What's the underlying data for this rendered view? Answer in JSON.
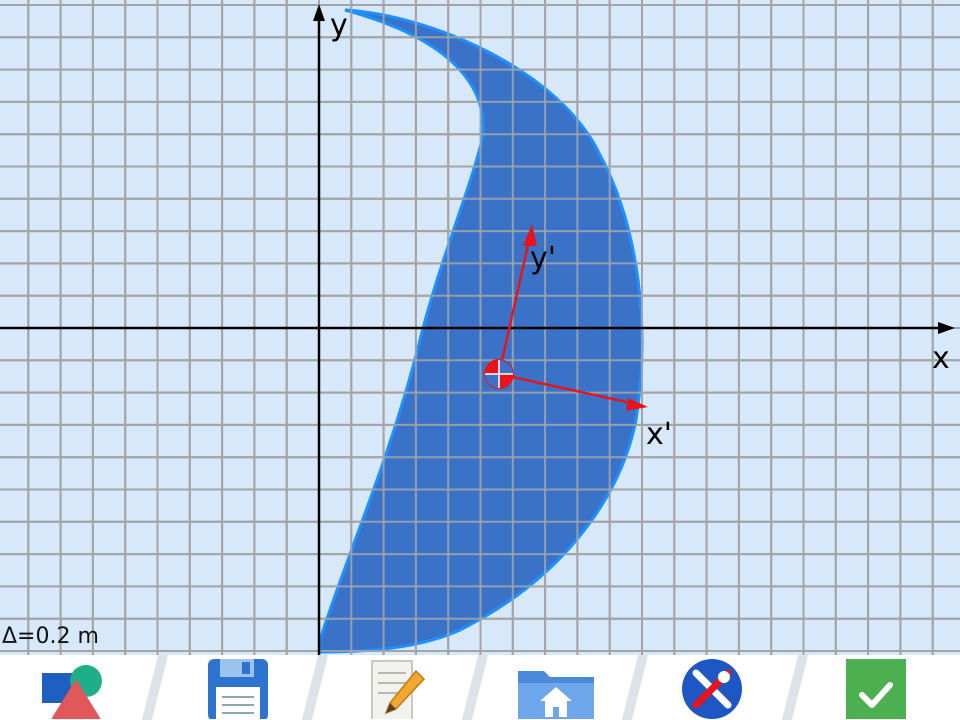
{
  "canvas": {
    "axis_x_label": "x",
    "axis_y_label": "y",
    "local_axis_x_label": "x'",
    "local_axis_y_label": "y'",
    "scale_label": "Δ=0.2 m",
    "colors": {
      "background": "#d8e8fb",
      "grid": "#9a9a9a",
      "shape_fill": "#3a72c8",
      "shape_edge": "#1e90ff",
      "local_axes": "#e8141c",
      "axes": "#000000"
    }
  },
  "toolbar": {
    "items": [
      {
        "name": "shapes-button",
        "icon": "shapes-icon"
      },
      {
        "name": "save-button",
        "icon": "floppy-disk-icon"
      },
      {
        "name": "edit-button",
        "icon": "notepad-pencil-icon"
      },
      {
        "name": "home-button",
        "icon": "home-folder-icon"
      },
      {
        "name": "settings-button",
        "icon": "tools-icon"
      },
      {
        "name": "confirm-button",
        "icon": "checkmark-icon"
      }
    ]
  }
}
